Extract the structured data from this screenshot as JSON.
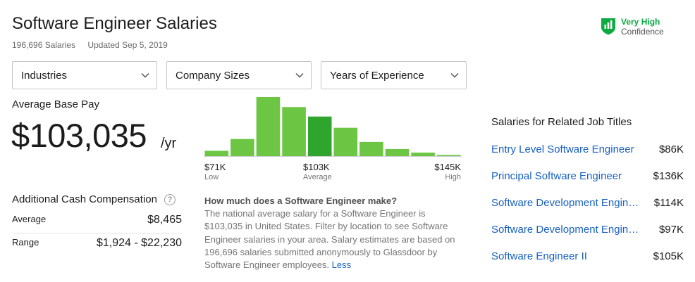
{
  "header": {
    "title": "Software Engineer Salaries",
    "salaries_count": "196,696 Salaries",
    "updated": "Updated Sep 5, 2019"
  },
  "confidence": {
    "level": "Very High",
    "label": "Confidence",
    "icon": "shield-bar-chart-icon",
    "color": "#0caa41"
  },
  "filters": [
    {
      "label": "Industries",
      "icon": "chevron-down-icon"
    },
    {
      "label": "Company Sizes",
      "icon": "chevron-down-icon"
    },
    {
      "label": "Years of Experience",
      "icon": "chevron-down-icon"
    }
  ],
  "base_pay": {
    "label": "Average Base Pay",
    "amount": "$103,035",
    "unit": "/yr"
  },
  "histogram": {
    "low_value": "$71K",
    "low_label": "Low",
    "avg_value": "$103K",
    "avg_label": "Average",
    "high_value": "$145K",
    "high_label": "High",
    "bar_color": "#6cc644",
    "avg_bar_color": "#2fa52e"
  },
  "chart_data": {
    "type": "bar",
    "categories": [
      "1",
      "2",
      "3",
      "4",
      "5",
      "6",
      "7",
      "8",
      "9",
      "10"
    ],
    "values": [
      9,
      29,
      100,
      83,
      67,
      48,
      24,
      12,
      6,
      2
    ],
    "highlight_index": 4,
    "ylim": [
      0,
      100
    ]
  },
  "cash": {
    "title": "Additional Cash Compensation",
    "help_icon": "question-circle-icon",
    "average_label": "Average",
    "average_value": "$8,465",
    "range_label": "Range",
    "range_value": "$1,924 - $22,230"
  },
  "faq": {
    "question": "How much does a Software Engineer make?",
    "answer": "The national average salary for a Software Engineer is $103,035 in United States. Filter by location to see Software Engineer salaries in your area. Salary estimates are based on 196,696 salaries submitted anonymously to Glassdoor by Software Engineer employees.",
    "less": "Less"
  },
  "related": {
    "title": "Salaries for Related Job Titles",
    "items": [
      {
        "name": "Entry Level Software Engineer",
        "value": "$86K"
      },
      {
        "name": "Principal Software Engineer",
        "value": "$136K"
      },
      {
        "name": "Software Development Engineer",
        "value": "$114K"
      },
      {
        "name": "Software Development Engineer II",
        "value": "$97K"
      },
      {
        "name": "Software Engineer II",
        "value": "$105K"
      }
    ]
  }
}
